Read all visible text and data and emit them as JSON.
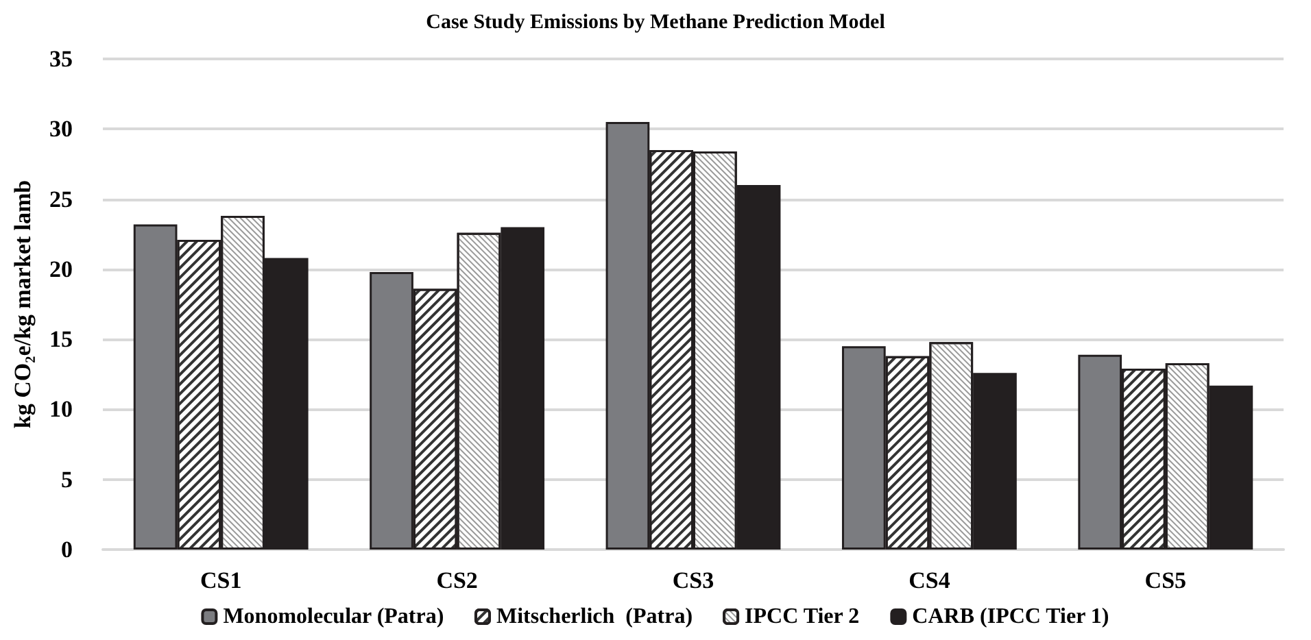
{
  "chart_data": {
    "type": "bar",
    "title": "Case Study Emissions by Methane Prediction Model",
    "ylabel": "kg CO₂e/kg market lamb",
    "categories": [
      "CS1",
      "CS2",
      "CS3",
      "CS4",
      "CS5"
    ],
    "series": [
      {
        "name": "Monomolecular (Patra)",
        "color": "#7b7c80",
        "values": [
          23.2,
          19.8,
          30.5,
          14.5,
          13.9
        ]
      },
      {
        "name": "Mitscherlich  (Patra)",
        "color": "#ffffff",
        "values": [
          22.1,
          18.6,
          28.5,
          13.8,
          12.9
        ]
      },
      {
        "name": "IPCC Tier 2",
        "color": "#ffffff",
        "values": [
          23.8,
          22.6,
          28.4,
          14.8,
          13.3
        ]
      },
      {
        "name": "CARB (IPCC Tier 1)",
        "color": "#231f20",
        "values": [
          20.8,
          23.0,
          26.0,
          12.6,
          11.7
        ]
      }
    ],
    "ylim": [
      0,
      35
    ],
    "yticks": [
      0,
      5,
      10,
      15,
      20,
      25,
      30,
      35
    ],
    "grid": "y",
    "legend": "bottom"
  }
}
